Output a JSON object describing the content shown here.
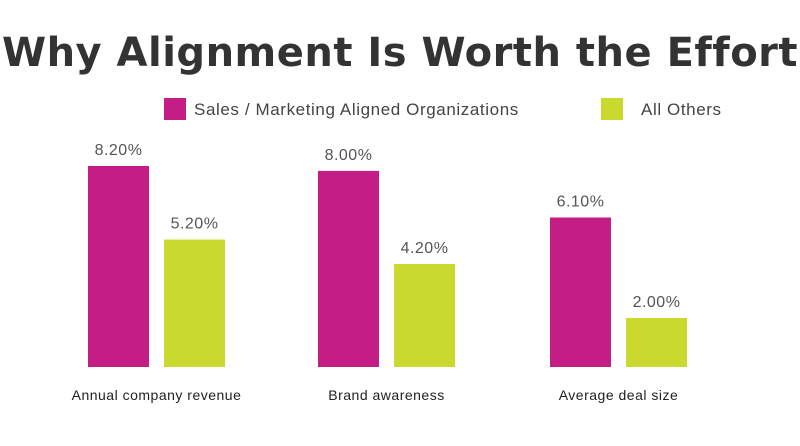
{
  "chart_data": {
    "type": "bar",
    "title": "Why Alignment Is Worth the Effort",
    "categories": [
      "Annual company revenue",
      "Brand awareness",
      "Average deal size"
    ],
    "series": [
      {
        "name": "Sales / Marketing Aligned Organizations",
        "values": [
          8.2,
          8.0,
          6.1
        ],
        "labels": [
          "8.20%",
          "8.00%",
          "6.10%"
        ],
        "color": "#C41E86"
      },
      {
        "name": "All Others",
        "values": [
          5.2,
          4.2,
          2.0
        ],
        "labels": [
          "5.20%",
          "4.20%",
          "2.00%"
        ],
        "color": "#C9D92E"
      }
    ],
    "ylim": [
      0,
      8.2
    ],
    "grid": false,
    "legend_position": "top"
  }
}
